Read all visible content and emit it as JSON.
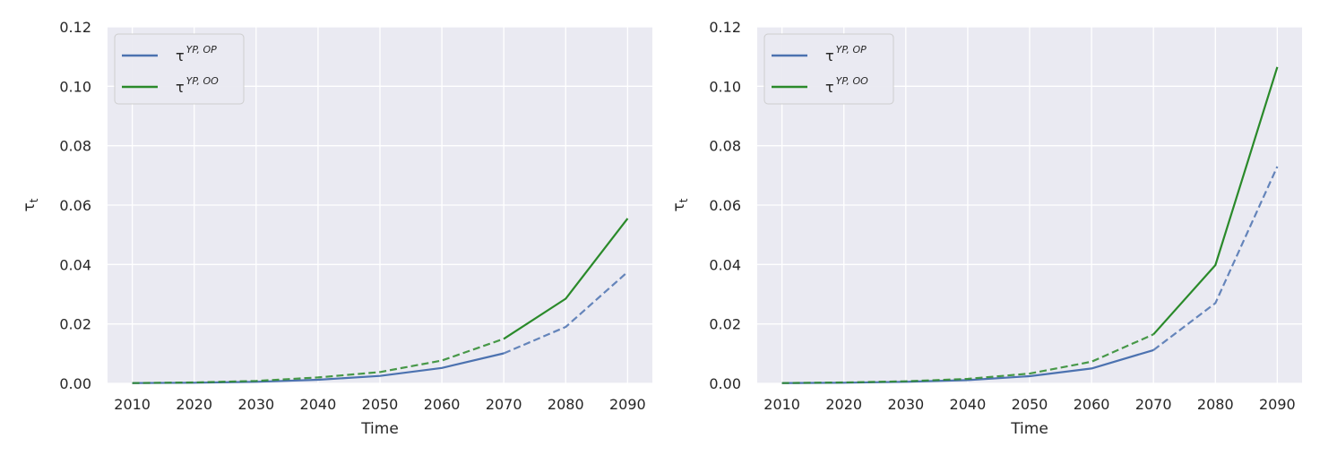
{
  "colors": {
    "background": "#eaeaf2",
    "grid": "#ffffff",
    "series_op": "#4c72b0",
    "series_oo": "#2a8a2a"
  },
  "chart_data": [
    {
      "type": "line",
      "xlabel": "Time",
      "ylabel": "τ",
      "ylabel_sub": "t",
      "xlim": [
        2006,
        2094
      ],
      "ylim": [
        0,
        0.12
      ],
      "x_ticks": [
        2010,
        2020,
        2030,
        2040,
        2050,
        2060,
        2070,
        2080,
        2090
      ],
      "x_tick_labels": [
        "2010",
        "2020",
        "2030",
        "2040",
        "2050",
        "2060",
        "2070",
        "2080",
        "2090"
      ],
      "y_ticks": [
        0,
        0.02,
        0.04,
        0.06,
        0.08,
        0.1,
        0.12
      ],
      "y_tick_labels": [
        "0.00",
        "0.02",
        "0.04",
        "0.06",
        "0.08",
        "0.10",
        "0.12"
      ],
      "grid": true,
      "legend_position": "top-left",
      "series": [
        {
          "name": "τ",
          "name_sup": "YP, OP",
          "color": "#4c72b0",
          "solid": {
            "x": [
              2010,
              2020,
              2030,
              2040,
              2050,
              2060,
              2070
            ],
            "y": [
              0.0001,
              0.0002,
              0.0005,
              0.0012,
              0.0025,
              0.0052,
              0.0101
            ]
          },
          "dashed": {
            "x": [
              2070,
              2080,
              2090
            ],
            "y": [
              0.0101,
              0.019,
              0.0375
            ]
          }
        },
        {
          "name": "τ",
          "name_sup": "YP, OO",
          "color": "#2a8a2a",
          "dashed": {
            "x": [
              2010,
              2020,
              2030,
              2040,
              2050,
              2060,
              2070
            ],
            "y": [
              0.0001,
              0.0003,
              0.0008,
              0.002,
              0.0038,
              0.0077,
              0.015
            ]
          },
          "solid": {
            "x": [
              2070,
              2080,
              2090
            ],
            "y": [
              0.015,
              0.0285,
              0.0555
            ]
          }
        }
      ]
    },
    {
      "type": "line",
      "xlabel": "Time",
      "ylabel": "τ",
      "ylabel_sub": "t",
      "xlim": [
        2006,
        2094
      ],
      "ylim": [
        0,
        0.12
      ],
      "x_ticks": [
        2010,
        2020,
        2030,
        2040,
        2050,
        2060,
        2070,
        2080,
        2090
      ],
      "x_tick_labels": [
        "2010",
        "2020",
        "2030",
        "2040",
        "2050",
        "2060",
        "2070",
        "2080",
        "2090"
      ],
      "y_ticks": [
        0,
        0.02,
        0.04,
        0.06,
        0.08,
        0.1,
        0.12
      ],
      "y_tick_labels": [
        "0.00",
        "0.02",
        "0.04",
        "0.06",
        "0.08",
        "0.10",
        "0.12"
      ],
      "grid": true,
      "legend_position": "top-left",
      "series": [
        {
          "name": "τ",
          "name_sup": "YP, OP",
          "color": "#4c72b0",
          "solid": {
            "x": [
              2010,
              2020,
              2030,
              2040,
              2050,
              2060,
              2070
            ],
            "y": [
              0.0001,
              0.0002,
              0.0005,
              0.0011,
              0.0024,
              0.005,
              0.0112
            ]
          },
          "dashed": {
            "x": [
              2070,
              2080,
              2090
            ],
            "y": [
              0.0112,
              0.027,
              0.073
            ]
          }
        },
        {
          "name": "τ",
          "name_sup": "YP, OO",
          "color": "#2a8a2a",
          "dashed": {
            "x": [
              2010,
              2020,
              2030,
              2040,
              2050,
              2060,
              2070
            ],
            "y": [
              0.0001,
              0.0003,
              0.0007,
              0.0015,
              0.0033,
              0.0073,
              0.0165
            ]
          },
          "solid": {
            "x": [
              2070,
              2080,
              2090
            ],
            "y": [
              0.0165,
              0.0398,
              0.1065
            ]
          }
        }
      ]
    }
  ]
}
